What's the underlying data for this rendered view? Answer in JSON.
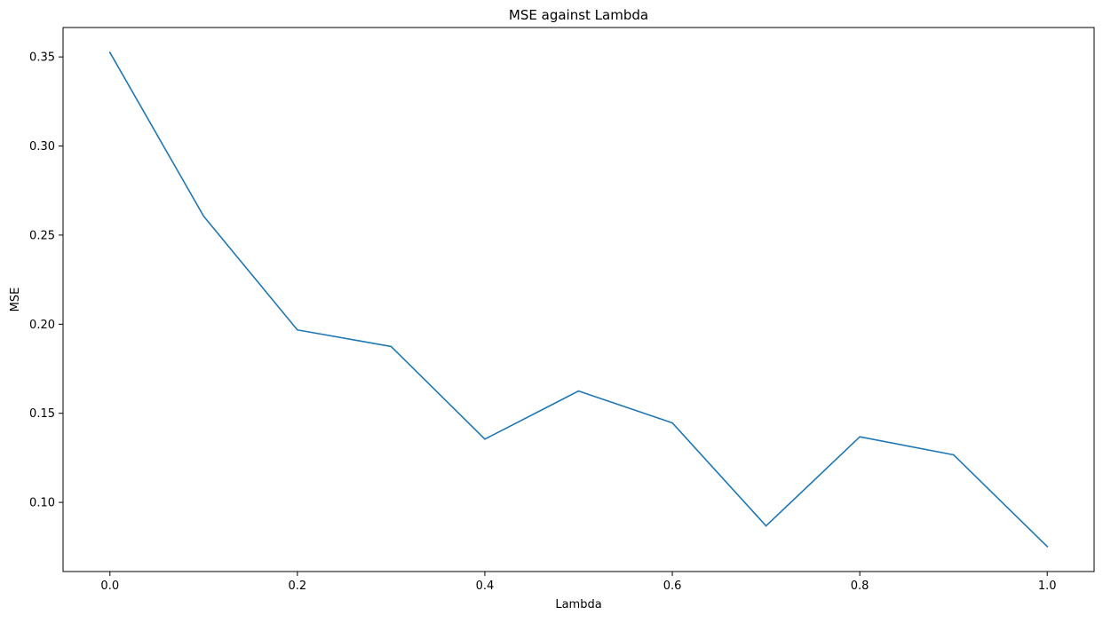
{
  "chart_data": {
    "type": "line",
    "title": "MSE against Lambda",
    "xlabel": "Lambda",
    "ylabel": "MSE",
    "xlim": [
      -0.05,
      1.05
    ],
    "ylim": [
      0.0612,
      0.3665
    ],
    "xticks": [
      0.0,
      0.2,
      0.4,
      0.6,
      0.8,
      1.0
    ],
    "xtick_labels": [
      "0.0",
      "0.2",
      "0.4",
      "0.6",
      "0.8",
      "1.0"
    ],
    "yticks": [
      0.1,
      0.15,
      0.2,
      0.25,
      0.3,
      0.35
    ],
    "ytick_labels": [
      "0.10",
      "0.15",
      "0.20",
      "0.25",
      "0.30",
      "0.35"
    ],
    "grid": false,
    "series": [
      {
        "color": "#1f77b4",
        "x": [
          0.0,
          0.1,
          0.2,
          0.3,
          0.4,
          0.5,
          0.6,
          0.7,
          0.8,
          0.9,
          1.0
        ],
        "y": [
          0.3525,
          0.2606,
          0.1968,
          0.1875,
          0.1355,
          0.1625,
          0.1446,
          0.0868,
          0.1368,
          0.1267,
          0.0752
        ]
      }
    ]
  }
}
